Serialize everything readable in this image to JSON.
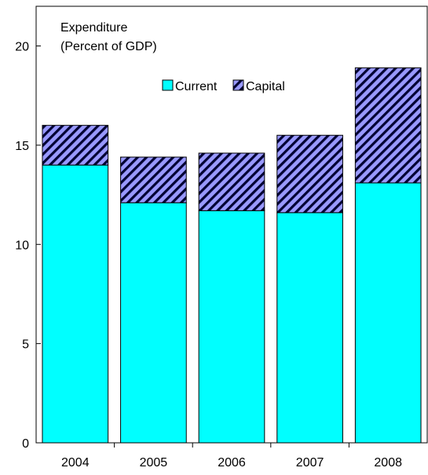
{
  "chart_data": {
    "type": "bar",
    "stacked": true,
    "title": "Expenditure",
    "subtitle": "(Percent of GDP)",
    "categories": [
      "2004",
      "2005",
      "2006",
      "2007",
      "2008"
    ],
    "series": [
      {
        "name": "Current",
        "values": [
          14.0,
          12.1,
          11.7,
          11.6,
          13.1
        ],
        "color": "#00FFFF",
        "pattern": "solid"
      },
      {
        "name": "Capital",
        "values": [
          2.0,
          2.3,
          2.9,
          3.9,
          5.8
        ],
        "color": "#9999FF",
        "pattern": "diagonal-hatch"
      }
    ],
    "ylim": [
      0,
      22
    ],
    "yticks": [
      "0",
      "5",
      "10",
      "15",
      "20"
    ],
    "grid": false,
    "legend": "top-center"
  }
}
